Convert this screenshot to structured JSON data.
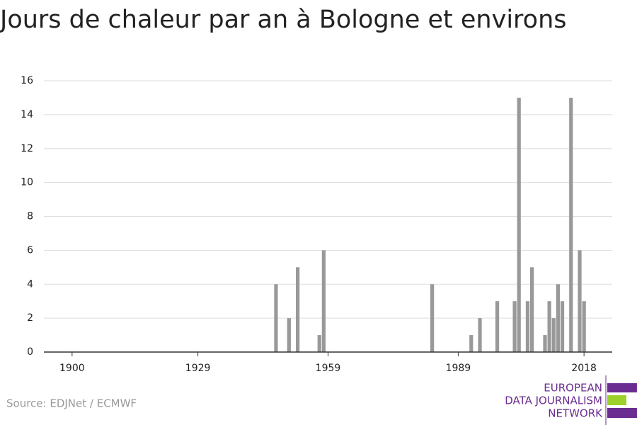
{
  "chart_data": {
    "type": "bar",
    "title": "Jours de chaleur par an à Bologne et environs",
    "x": [
      1947,
      1950,
      1952,
      1957,
      1958,
      1983,
      1992,
      1994,
      1998,
      2002,
      2003,
      2005,
      2006,
      2009,
      2010,
      2011,
      2012,
      2013,
      2015,
      2017,
      2018
    ],
    "values": [
      4,
      2,
      5,
      1,
      6,
      4,
      1,
      2,
      3,
      3,
      15,
      3,
      5,
      1,
      3,
      2,
      4,
      3,
      15,
      6,
      3
    ],
    "color": "#999999",
    "xlim": [
      1893.5,
      2024.5
    ],
    "xticks": [
      1900,
      1929,
      1959,
      1989,
      2018
    ],
    "ylim": [
      0,
      16
    ],
    "yticks": [
      0,
      2,
      4,
      6,
      8,
      10,
      12,
      14,
      16
    ],
    "grid": true
  },
  "source": "Source: EDJNet / ECMWF",
  "logo": [
    "EUROPEAN",
    "DATA JOURNALISM",
    "NETWORK"
  ]
}
